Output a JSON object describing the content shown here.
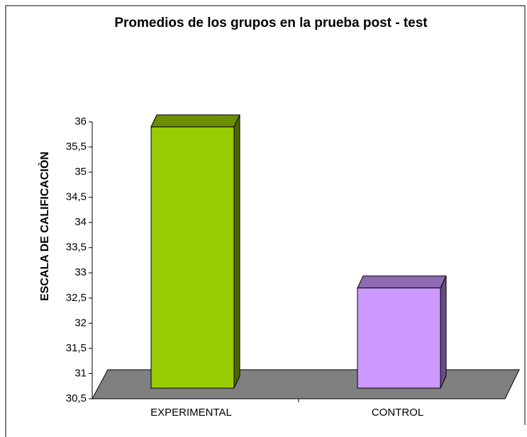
{
  "chart_data": {
    "type": "bar3d",
    "title": "Promedios de los grupos en la prueba post - test",
    "y_label": "ESCALA DE CALIFICACIÒN",
    "categories": [
      "EXPERIMENTAL",
      "CONTROL"
    ],
    "values": [
      35.9,
      32.7
    ],
    "colors": [
      "#99cc00",
      "#cc99ff"
    ],
    "ylim": [
      30.5,
      36
    ],
    "yticks": [
      {
        "value": 30.5,
        "label": "30,5"
      },
      31,
      {
        "value": 31.5,
        "label": "31,5"
      },
      32,
      {
        "value": 32.5,
        "label": "32,5"
      },
      33,
      {
        "value": 33.5,
        "label": "33,5"
      },
      34,
      {
        "value": 34.5,
        "label": "34,5"
      },
      35,
      {
        "value": 35.5,
        "label": "35,5"
      },
      36
    ],
    "grid": false
  }
}
